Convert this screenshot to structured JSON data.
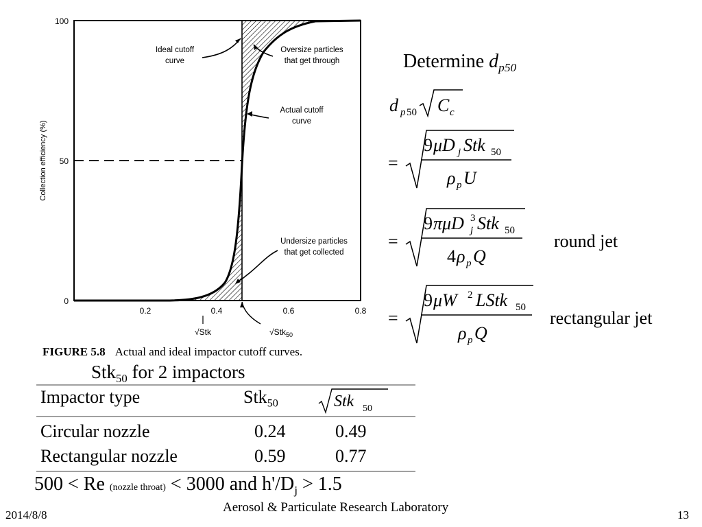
{
  "figure": {
    "y_axis_label": "Collection efficiency (%)",
    "y_ticks": [
      "0",
      "50",
      "100"
    ],
    "x_ticks": [
      "0.2",
      "0.4",
      "0.6",
      "0.8"
    ],
    "x_label": "√Stk",
    "x_marker_label": "√Stk",
    "x_marker_sub": "50",
    "annotations": {
      "ideal": [
        "Ideal cutoff",
        "curve"
      ],
      "oversize": [
        "Oversize particles",
        "that get through"
      ],
      "actual": [
        "Actual cutoff",
        "curve"
      ],
      "undersize": [
        "Undersize particles",
        "that get collected"
      ]
    }
  },
  "caption": {
    "number": "FIGURE 5.8",
    "text": "Actual and ideal impactor cutoff curves."
  },
  "table": {
    "title_main": "Stk",
    "title_sub": "50",
    "title_rest": " for 2 impactors",
    "headers": {
      "type": "Impactor type",
      "stk_main": "Stk",
      "stk_sub": "50",
      "sqrt_stk_main": "Stk",
      "sqrt_stk_sub": "50"
    },
    "rows": [
      {
        "type": "Circular nozzle",
        "stk": "0.24",
        "sqrt_stk": "0.49"
      },
      {
        "type": "Rectangular nozzle",
        "stk": "0.59",
        "sqrt_stk": "0.77"
      }
    ]
  },
  "reynolds": {
    "left": "500 < Re ",
    "note": "(nozzle throat)",
    "mid": " < 3000 and h'/D",
    "sub": "j",
    "right": " > 1.5"
  },
  "equations": {
    "heading_text": "Determine ",
    "heading_var": "d",
    "heading_sub": "p50",
    "lhs": "d_p50 √C_c",
    "eq1": "= √(9μD_j Stk_50 / ρ_p U)",
    "eq2": "= √(9πμD_j^3 Stk_50 / 4ρ_p Q)",
    "eq2_label": "round jet",
    "eq3": "= √(9μW^2 L Stk_50 / ρ_p Q)",
    "eq3_label": "rectangular jet"
  },
  "footer": {
    "date": "2014/8/8",
    "lab": "Aerosol & Particulate Research Laboratory",
    "page": "13"
  }
}
